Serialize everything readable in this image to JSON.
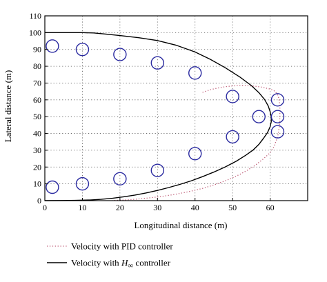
{
  "chart_data": {
    "type": "line",
    "title": "",
    "xlabel": "Longitudinal distance (m)",
    "ylabel": "Lateral distance (m)",
    "xlim": [
      0,
      70
    ],
    "ylim": [
      0,
      110
    ],
    "xticks": [
      0,
      10,
      20,
      30,
      40,
      50,
      60
    ],
    "yticks": [
      0,
      10,
      20,
      30,
      40,
      50,
      60,
      70,
      80,
      90,
      100,
      110
    ],
    "grid": true,
    "legend_placement": "below",
    "series": [
      {
        "name": "Velocity with PID controller",
        "style": "dotted",
        "color": "#c0607a",
        "x": [
          42,
          44,
          46,
          48,
          50,
          52,
          54,
          56,
          58,
          60,
          61,
          61.5,
          62,
          62.3,
          62.5,
          62.6,
          62.6,
          62.5,
          62.3,
          62,
          61.5,
          61,
          60,
          58,
          56,
          54,
          52,
          50,
          48,
          46,
          44,
          42,
          40,
          38,
          36,
          34,
          32,
          30,
          28,
          26,
          24,
          22,
          20,
          18
        ],
        "y": [
          64.5,
          66,
          67,
          67.8,
          68.3,
          68.5,
          68.4,
          68.1,
          67.5,
          66.4,
          65.5,
          64.5,
          63,
          61,
          58,
          55,
          50,
          45,
          42,
          38,
          35,
          32,
          28.5,
          24.5,
          21,
          18.2,
          15.7,
          13.6,
          11.8,
          10.1,
          8.6,
          7.3,
          6.2,
          5.2,
          4.3,
          3.5,
          2.8,
          2.2,
          1.7,
          1.2,
          0.8,
          0.5,
          0.3,
          0.1
        ]
      },
      {
        "name": "Velocity with H∞ controller",
        "style": "solid",
        "color": "#000000",
        "x": [
          0,
          5,
          10,
          13,
          16,
          20,
          25,
          30,
          35,
          40,
          44,
          48,
          52,
          55,
          57,
          58.5,
          59.5,
          60,
          60.3,
          60.3,
          60,
          59.3,
          58.2,
          57,
          55.5,
          53.5,
          51,
          48,
          45,
          42,
          39,
          36,
          33,
          30,
          27,
          24,
          21,
          18,
          15,
          12,
          8,
          4,
          0
        ],
        "y": [
          100,
          100,
          100,
          99.8,
          99.2,
          98.3,
          97,
          95.3,
          92.5,
          88.5,
          84.2,
          79.2,
          73.5,
          68.5,
          64.3,
          60.3,
          56.3,
          53,
          49.5,
          47,
          44,
          40.5,
          37,
          33.5,
          30.2,
          27,
          23.5,
          20,
          17,
          14.3,
          11.8,
          9.7,
          7.8,
          6.1,
          4.6,
          3.3,
          2.3,
          1.4,
          0.8,
          0.4,
          0.15,
          0.05,
          0
        ]
      }
    ],
    "obstacles": {
      "shape": "circle",
      "color": "#2a2aa0",
      "points": [
        {
          "x": 2,
          "y": 92
        },
        {
          "x": 10,
          "y": 90
        },
        {
          "x": 20,
          "y": 87
        },
        {
          "x": 30,
          "y": 82
        },
        {
          "x": 40,
          "y": 76
        },
        {
          "x": 50,
          "y": 62
        },
        {
          "x": 57,
          "y": 50
        },
        {
          "x": 62,
          "y": 60
        },
        {
          "x": 62,
          "y": 50
        },
        {
          "x": 62,
          "y": 41
        },
        {
          "x": 50,
          "y": 38
        },
        {
          "x": 40,
          "y": 28
        },
        {
          "x": 30,
          "y": 18
        },
        {
          "x": 20,
          "y": 13
        },
        {
          "x": 10,
          "y": 10
        },
        {
          "x": 2,
          "y": 8
        }
      ]
    },
    "legend": [
      {
        "label_prefix": "Velocity with PID controller",
        "label_math": "",
        "label_suffix": "",
        "style": "dotted",
        "color": "#c0607a"
      },
      {
        "label_prefix": "Velocity with ",
        "label_math": "H",
        "label_sub": "∞",
        "label_suffix": " controller",
        "style": "solid",
        "color": "#000000"
      }
    ]
  }
}
